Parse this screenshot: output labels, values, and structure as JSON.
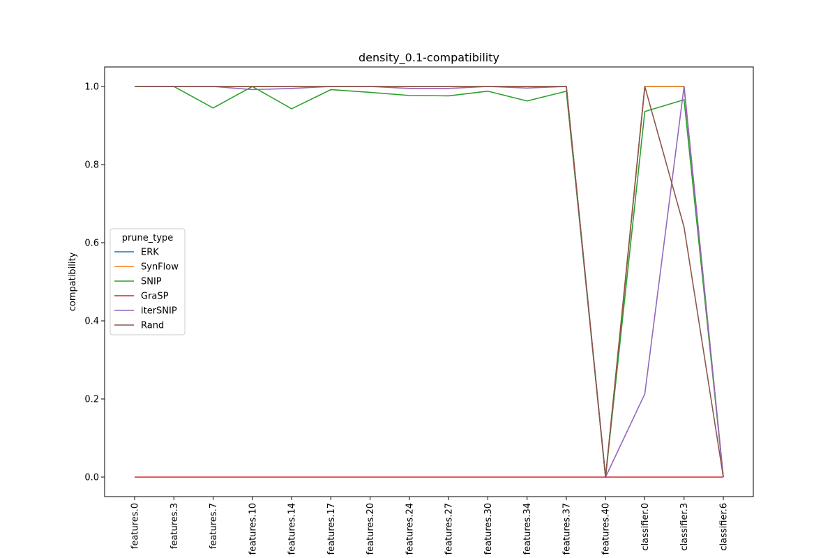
{
  "chart_data": {
    "type": "line",
    "title": "density_0.1-compatibility",
    "xlabel": "",
    "ylabel": "compatibility",
    "categories": [
      "features.0",
      "features.3",
      "features.7",
      "features.10",
      "features.14",
      "features.17",
      "features.20",
      "features.24",
      "features.27",
      "features.30",
      "features.34",
      "features.37",
      "features.40",
      "classifier.0",
      "classifier.3",
      "classifier.6"
    ],
    "ylim": [
      -0.05,
      1.05
    ],
    "yticks": [
      0.0,
      0.2,
      0.4,
      0.6,
      0.8,
      1.0
    ],
    "ytick_labels": [
      "0.0",
      "0.2",
      "0.4",
      "0.6",
      "0.8",
      "1.0"
    ],
    "grid": false,
    "legend": {
      "title": "prune_type",
      "placement": "center-left"
    },
    "series": [
      {
        "name": "ERK",
        "color": "#1f77b4",
        "values": [
          1.0,
          1.0,
          1.0,
          1.0,
          1.0,
          1.0,
          1.0,
          1.0,
          1.0,
          1.0,
          1.0,
          1.0,
          0.0,
          1.0,
          1.0,
          0.0
        ]
      },
      {
        "name": "SynFlow",
        "color": "#ff7f0e",
        "values": [
          1.0,
          1.0,
          1.0,
          1.0,
          1.0,
          1.0,
          1.0,
          1.0,
          1.0,
          1.0,
          1.0,
          1.0,
          0.0,
          1.0,
          1.0,
          0.0
        ]
      },
      {
        "name": "SNIP",
        "color": "#2ca02c",
        "values": [
          1.0,
          1.0,
          0.945,
          1.0,
          0.943,
          0.992,
          0.985,
          0.977,
          0.976,
          0.988,
          0.963,
          0.988,
          0.0,
          0.936,
          0.966,
          0.0
        ]
      },
      {
        "name": "GraSP",
        "color": "#d62728",
        "values": [
          0.0,
          0.0,
          0.0,
          0.0,
          0.0,
          0.0,
          0.0,
          0.0,
          0.0,
          0.0,
          0.0,
          0.0,
          0.0,
          0.0,
          0.0,
          0.0
        ]
      },
      {
        "name": "iterSNIP",
        "color": "#9467bd",
        "values": [
          1.0,
          1.0,
          1.0,
          0.992,
          0.995,
          1.0,
          1.0,
          0.995,
          0.995,
          1.0,
          0.996,
          1.0,
          0.0,
          0.213,
          1.0,
          0.0
        ]
      },
      {
        "name": "Rand",
        "color": "#8c564b",
        "values": [
          1.0,
          1.0,
          1.0,
          1.0,
          1.0,
          1.0,
          1.0,
          1.0,
          1.0,
          1.0,
          1.0,
          1.0,
          0.0,
          1.0,
          0.64,
          0.0
        ]
      }
    ]
  }
}
